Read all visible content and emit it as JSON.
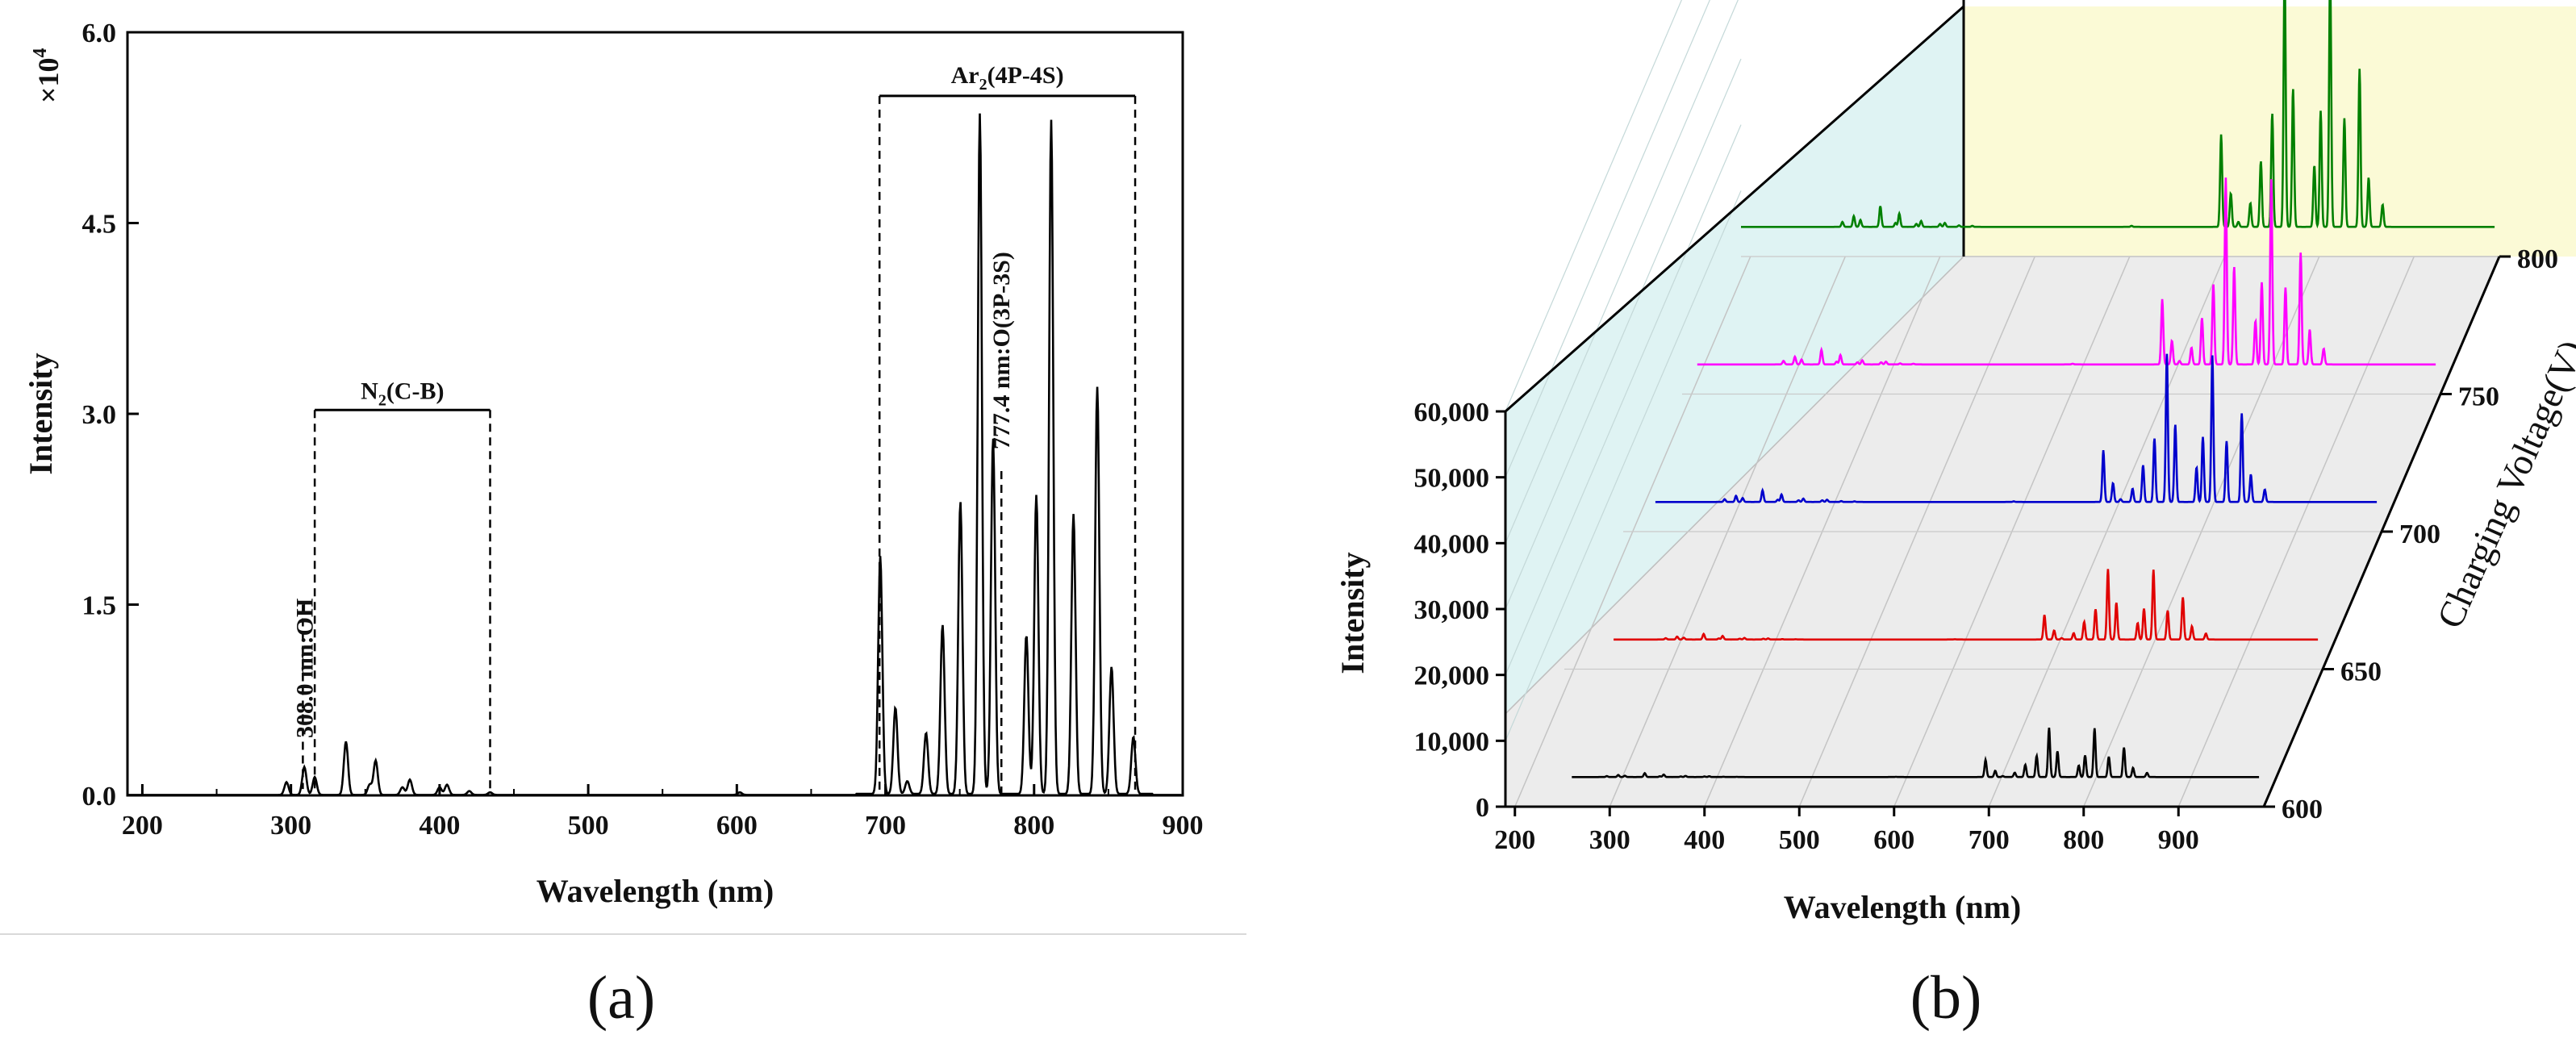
{
  "panel_labels": {
    "a": "(a)",
    "b": "(b)"
  },
  "chart_data": [
    {
      "type": "line",
      "panel": "(a)",
      "xlabel": "Wavelength (nm)",
      "ylabel": "Intensity",
      "y_multiplier": "×10",
      "y_multiplier_exp": "4",
      "xlim": [
        190,
        900
      ],
      "ylim": [
        0,
        6.0
      ],
      "x_ticks": [
        "200",
        "300",
        "400",
        "500",
        "600",
        "700",
        "800",
        "900"
      ],
      "y_ticks": [
        "0.0",
        "1.5",
        "3.0",
        "4.5",
        "6.0"
      ],
      "grid": false,
      "annotations": {
        "oh": "308.0 nm:OH",
        "n2_main": "N",
        "n2_sub": "2",
        "n2_rest": "(C-B)",
        "ar_main": "Ar",
        "ar_sub": "2",
        "ar_rest": "(4P-4S)",
        "o": "777.4 nm:O(3P-3S)"
      },
      "series": [
        {
          "color": "#000000",
          "peaks": [
            [
              297,
              0.1
            ],
            [
              309,
              0.22
            ],
            [
              316,
              0.14
            ],
            [
              337,
              0.42
            ],
            [
              353,
              0.08
            ],
            [
              357,
              0.27
            ],
            [
              375,
              0.06
            ],
            [
              380,
              0.12
            ],
            [
              400,
              0.06
            ],
            [
              405,
              0.08
            ],
            [
              420,
              0.03
            ],
            [
              434,
              0.02
            ],
            [
              602,
              0.02
            ],
            [
              696.5,
              1.87
            ],
            [
              706.7,
              0.68
            ],
            [
              714.7,
              0.1
            ],
            [
              727.3,
              0.48
            ],
            [
              738.4,
              1.33
            ],
            [
              750.4,
              2.3
            ],
            [
              763.5,
              5.35
            ],
            [
              772.4,
              2.8
            ],
            [
              794.8,
              1.25
            ],
            [
              801.5,
              2.35
            ],
            [
              811.5,
              5.3
            ],
            [
              826.5,
              2.2
            ],
            [
              842.5,
              3.2
            ],
            [
              852.1,
              1.0
            ],
            [
              866.8,
              0.45
            ]
          ]
        }
      ]
    },
    {
      "type": "line",
      "panel": "(b)",
      "xlabel": "Wavelength (nm)",
      "ylabel": "Intensity",
      "zlabel": "Charging Voltage(V)",
      "x_ticks": [
        "200",
        "300",
        "400",
        "500",
        "600",
        "700",
        "800",
        "900"
      ],
      "y_ticks": [
        "0",
        "10,000",
        "20,000",
        "30,000",
        "40,000",
        "50,000",
        "60,000"
      ],
      "z_ticks": [
        "600",
        "650",
        "700",
        "750",
        "800"
      ],
      "ylim": [
        0,
        60000
      ],
      "xlim": [
        190,
        990
      ],
      "series": [
        {
          "name": "600",
          "color": "#000000",
          "scale": 1400
        },
        {
          "name": "650",
          "color": "#e00000",
          "scale": 2000
        },
        {
          "name": "700",
          "color": "#0000cc",
          "scale": 4200
        },
        {
          "name": "750",
          "color": "#ff00ff",
          "scale": 5300
        },
        {
          "name": "800",
          "color": "#008000",
          "scale": 7500
        }
      ],
      "colors": {
        "left_wall": "#dff3f3",
        "back_wall": "#fbfad6",
        "floor": "#ececec"
      }
    }
  ]
}
